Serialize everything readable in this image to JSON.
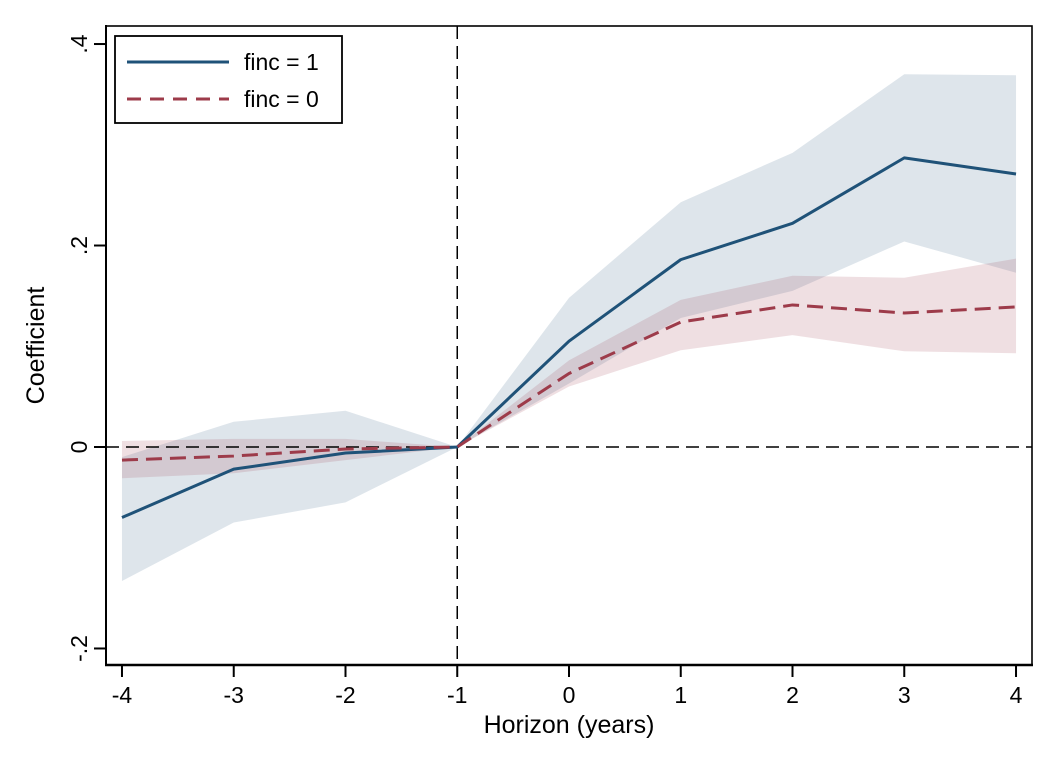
{
  "chart_data": {
    "type": "line",
    "title": "",
    "xlabel": "Horizon (years)",
    "ylabel": "Coefficient",
    "x": [
      -4,
      -3,
      -2,
      -1,
      0,
      1,
      2,
      3,
      4
    ],
    "series": [
      {
        "name": "finc = 1",
        "line_style": "solid",
        "color": "#1f5278",
        "band_color": "rgba(31, 82, 120, 0.15)",
        "coef": [
          -0.07,
          -0.022,
          -0.006,
          0,
          0.105,
          0.186,
          0.222,
          0.287,
          0.271
        ],
        "ci_upper": [
          -0.01,
          0.025,
          0.036,
          0,
          0.148,
          0.243,
          0.292,
          0.37,
          0.369
        ],
        "ci_lower": [
          -0.133,
          -0.075,
          -0.055,
          0,
          0.063,
          0.128,
          0.155,
          0.204,
          0.173
        ]
      },
      {
        "name": "finc = 0",
        "line_style": "dashed",
        "color": "#9d3b4a",
        "band_color": "rgba(157, 59, 74, 0.16)",
        "coef": [
          -0.013,
          -0.009,
          -0.002,
          0,
          0.073,
          0.124,
          0.141,
          0.133,
          0.139
        ],
        "ci_upper": [
          0.006,
          0.008,
          0.008,
          0,
          0.086,
          0.146,
          0.17,
          0.168,
          0.187
        ],
        "ci_lower": [
          -0.031,
          -0.026,
          -0.013,
          0,
          0.06,
          0.096,
          0.111,
          0.095,
          0.093
        ]
      }
    ],
    "x_ticks": {
      "values": [
        -4,
        -3,
        -2,
        -1,
        0,
        1,
        2,
        3,
        4
      ],
      "labels": [
        "-4",
        "-3",
        "-2",
        "-1",
        "0",
        "1",
        "2",
        "3",
        "4"
      ]
    },
    "y_ticks": {
      "values": [
        0.4,
        0.2,
        0,
        -0.2
      ],
      "labels": [
        ".4",
        ".2",
        "0",
        "-.2"
      ]
    },
    "xlim": [
      -4.143,
      4.143
    ],
    "ylim": [
      -0.2164,
      0.4179
    ],
    "reference_lines": {
      "vertical_x": -1,
      "horizontal_y": 0
    },
    "legend": {
      "position": "top-left",
      "entries": [
        "finc = 1",
        "finc = 0"
      ]
    },
    "grid": false
  },
  "colors": {
    "background": "#ffffff",
    "plot_border": "#000000",
    "reference_line": "#000000",
    "tick": "#000000",
    "text": "#000000",
    "legend_background": "#ffffff",
    "legend_border": "#000000",
    "series_finc1": "#1f5278",
    "series_finc0": "#9d3b4a"
  }
}
